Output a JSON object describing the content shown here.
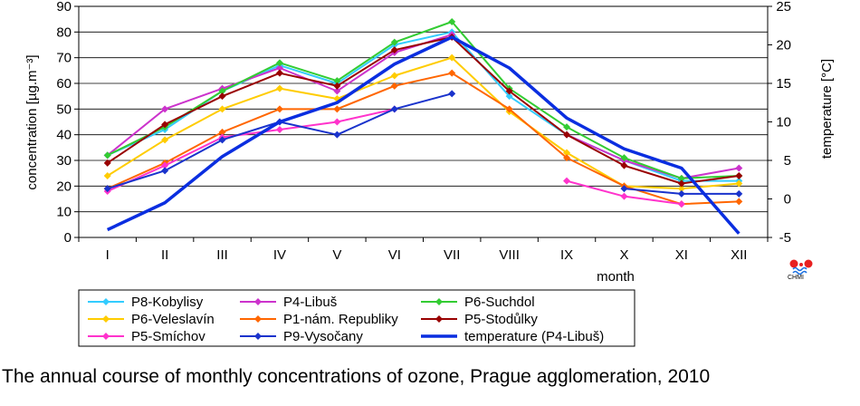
{
  "caption": "The annual course of monthly concentrations of ozone, Prague agglomeration, 2010",
  "logo_text": "CHMI",
  "chart_data": {
    "type": "line",
    "categories": [
      "I",
      "II",
      "III",
      "IV",
      "V",
      "VI",
      "VII",
      "VIII",
      "IX",
      "X",
      "XI",
      "XII"
    ],
    "xlabel": "month",
    "ylabel": "concentration [µg.m⁻³]",
    "y2label": "temperature [°C]",
    "ylim": [
      0,
      90
    ],
    "y2lim": [
      -5,
      25
    ],
    "yticks": [
      "0",
      "10",
      "20",
      "30",
      "40",
      "50",
      "60",
      "70",
      "80",
      "90"
    ],
    "y2ticks": [
      "-5",
      "0",
      "5",
      "10",
      "15",
      "20",
      "25"
    ],
    "grid": true,
    "legend_position": "bottom",
    "series": [
      {
        "name": "P8-Kobylisy",
        "color": "#33ccff",
        "marker": true,
        "values": [
          32,
          42,
          57,
          67,
          60,
          75,
          80,
          55,
          40,
          30,
          22,
          22
        ]
      },
      {
        "name": "P4-Libuš",
        "color": "#cc33cc",
        "marker": true,
        "values": [
          32,
          50,
          58,
          66,
          57,
          72,
          79,
          null,
          40,
          30,
          23,
          27
        ]
      },
      {
        "name": "P6-Suchdol",
        "color": "#33cc33",
        "marker": true,
        "values": [
          32,
          43,
          57,
          68,
          61,
          76,
          84,
          58,
          43,
          31,
          23,
          24
        ]
      },
      {
        "name": "P6-Veleslavín",
        "color": "#ffcc00",
        "marker": true,
        "values": [
          24,
          38,
          50,
          58,
          54,
          63,
          70,
          49,
          33,
          20,
          19,
          21
        ]
      },
      {
        "name": "P1-nám. Republiky",
        "color": "#ff6600",
        "marker": true,
        "values": [
          19,
          29,
          41,
          50,
          50,
          59,
          64,
          50,
          31,
          20,
          13,
          14
        ]
      },
      {
        "name": "P5-Stodůlky",
        "color": "#990000",
        "marker": true,
        "values": [
          29,
          44,
          55,
          64,
          59,
          73,
          78,
          57,
          40,
          28,
          21,
          24
        ]
      },
      {
        "name": "P5-Smíchov",
        "color": "#ff33cc",
        "marker": true,
        "values": [
          18,
          28,
          39,
          42,
          45,
          50,
          null,
          null,
          22,
          16,
          13,
          null
        ]
      },
      {
        "name": "P9-Vysočany",
        "color": "#1a33cc",
        "marker": true,
        "values": [
          19,
          26,
          38,
          45,
          40,
          50,
          56,
          null,
          null,
          19,
          17,
          17
        ]
      },
      {
        "name": "temperature (P4-Libuš)",
        "color": "#0a2ee0",
        "marker": false,
        "axis": "right",
        "values": [
          -4,
          -0.5,
          5.5,
          10,
          12.5,
          17.5,
          21,
          17,
          10.5,
          6.5,
          4,
          -4.5
        ]
      }
    ]
  }
}
